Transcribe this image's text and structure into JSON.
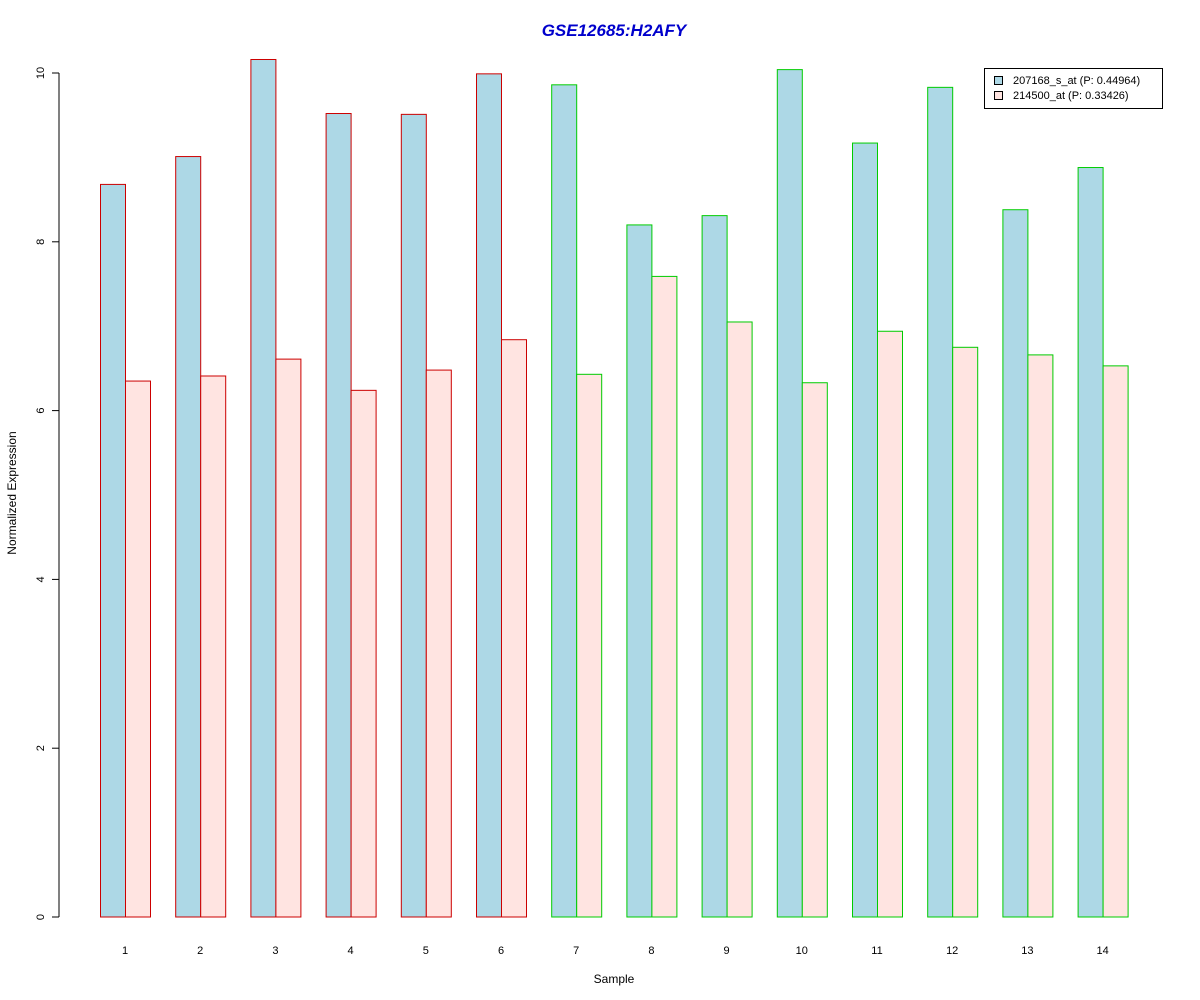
{
  "chart_data": {
    "type": "bar",
    "title": "GSE12685:H2AFY",
    "xlabel": "Sample",
    "ylabel": "Normalized Expression",
    "categories": [
      "1",
      "2",
      "3",
      "4",
      "5",
      "6",
      "7",
      "8",
      "9",
      "10",
      "11",
      "12",
      "13",
      "14"
    ],
    "series": [
      {
        "name": "207168_s_at (P: 0.44964)",
        "values": [
          8.68,
          9.01,
          10.16,
          9.52,
          9.51,
          9.99,
          9.86,
          8.2,
          8.31,
          10.04,
          9.17,
          9.83,
          8.38,
          8.88
        ]
      },
      {
        "name": "214500_at (P: 0.33426)",
        "values": [
          6.35,
          6.41,
          6.61,
          6.24,
          6.48,
          6.84,
          6.43,
          7.59,
          7.05,
          6.33,
          6.94,
          6.75,
          6.66,
          6.53
        ]
      }
    ],
    "group_borders": [
      "#cc0000",
      "#cc0000",
      "#cc0000",
      "#cc0000",
      "#cc0000",
      "#cc0000",
      "#00cc00",
      "#00cc00",
      "#00cc00",
      "#00cc00",
      "#00cc00",
      "#00cc00",
      "#00cc00",
      "#00cc00"
    ],
    "ylim": [
      0,
      10
    ],
    "yticks": [
      "0",
      "2",
      "4",
      "6",
      "8",
      "10"
    ],
    "grid": false,
    "legend_position": "top-right",
    "colors": {
      "series_fills": [
        "#add8e6",
        "#ffe4e1"
      ],
      "title": "#0000cc",
      "axis": "#000000"
    }
  }
}
